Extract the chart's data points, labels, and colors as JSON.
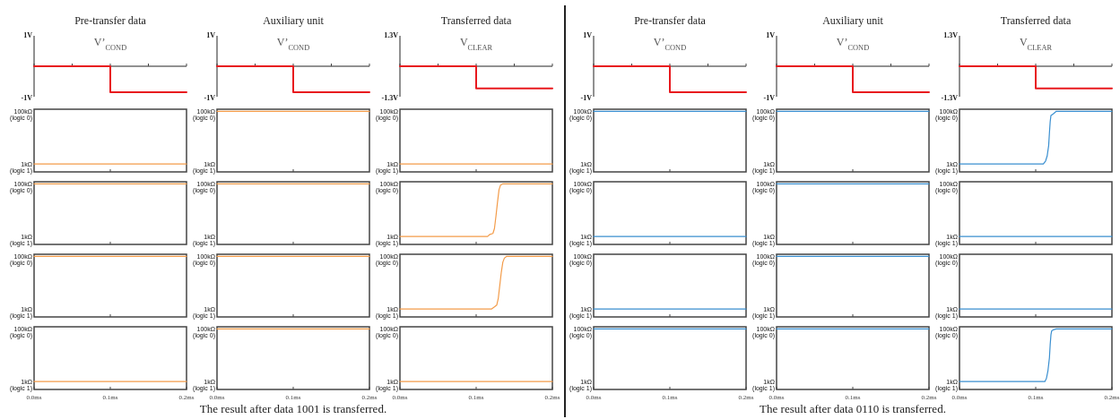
{
  "chart_data": [
    {
      "type": "line",
      "title": "Pre-transfer data",
      "subtitle": "V’$_{COND}$",
      "x": [
        0,
        0.1,
        0.1,
        0.2
      ],
      "series": [
        {
          "color": "#e8191e",
          "values": [
            0,
            0,
            -0.85,
            -0.85
          ]
        }
      ],
      "xlim": [
        0,
        0.2
      ],
      "ylim": [
        -1,
        1
      ],
      "xticks": [
        {
          "value": 0,
          "label": null
        },
        {
          "value": 0.05,
          "label": null
        },
        {
          "value": 0.1,
          "label": null
        },
        {
          "value": 0.15,
          "label": null
        },
        {
          "value": 0.2,
          "label": null
        }
      ],
      "yticks": [
        {
          "value": 1,
          "label": "1V"
        },
        {
          "value": -1,
          "label": "-1V"
        }
      ],
      "tick_labels": "y"
    },
    {
      "type": "line",
      "title": "Auxiliary unit",
      "subtitle": "V’$_{COND}$",
      "x": [
        0,
        0.1,
        0.1,
        0.2
      ],
      "series": [
        {
          "color": "#e8191e",
          "values": [
            0,
            0,
            -0.85,
            -0.85
          ]
        }
      ],
      "xlim": [
        0,
        0.2
      ],
      "ylim": [
        -1,
        1
      ],
      "xticks": [
        {
          "value": 0,
          "label": null
        },
        {
          "value": 0.05,
          "label": null
        },
        {
          "value": 0.1,
          "label": null
        },
        {
          "value": 0.15,
          "label": null
        },
        {
          "value": 0.2,
          "label": null
        }
      ],
      "yticks": [
        {
          "value": 1,
          "label": "1V"
        },
        {
          "value": -1,
          "label": "-1V"
        }
      ],
      "tick_labels": "y"
    },
    {
      "type": "line",
      "title": "Transferred data",
      "subtitle": "V$_{CLEAR}$",
      "x": [
        0,
        0.1,
        0.1,
        0.2
      ],
      "series": [
        {
          "color": "#e8191e",
          "values": [
            0,
            0,
            -0.95,
            -0.95
          ]
        }
      ],
      "xlim": [
        0,
        0.2
      ],
      "ylim": [
        -1.3,
        1.3
      ],
      "xticks": [
        {
          "value": 0,
          "label": null
        },
        {
          "value": 0.05,
          "label": null
        },
        {
          "value": 0.1,
          "label": null
        },
        {
          "value": 0.15,
          "label": null
        },
        {
          "value": 0.2,
          "label": null
        }
      ],
      "yticks": [
        {
          "value": 1.3,
          "label": "1.3V"
        },
        {
          "value": -1.3,
          "label": "-1.3V"
        }
      ],
      "tick_labels": "y"
    },
    {
      "type": "line",
      "x": [
        0,
        0.2
      ],
      "series": [
        {
          "color": "#f39c4a",
          "values": [
            1,
            1
          ]
        }
      ],
      "xlim": [
        0,
        0.2
      ],
      "log": true,
      "ylim": [
        0.5,
        120
      ],
      "xticks": [
        {
          "value": 0.1,
          "label": null
        }
      ],
      "yticks": [
        {
          "value": 100,
          "label": "100kΩ"
        },
        {
          "value": 1,
          "label": "1kΩ"
        }
      ],
      "tick_labels": "y",
      "annotations": [
        "(logic 0)",
        "(logic 1)"
      ]
    },
    {
      "type": "line",
      "x": [
        0,
        0.2
      ],
      "series": [
        {
          "color": "#f39c4a",
          "values": [
            100,
            100
          ]
        }
      ],
      "xlim": [
        0,
        0.2
      ],
      "log": true,
      "ylim": [
        0.5,
        120
      ],
      "xticks": [
        {
          "value": 0.1,
          "label": null
        }
      ],
      "yticks": [
        {
          "value": 100,
          "label": "100kΩ"
        },
        {
          "value": 1,
          "label": "1kΩ"
        }
      ],
      "tick_labels": "y",
      "annotations": [
        "(logic 0)",
        "(logic 1)"
      ]
    },
    {
      "type": "line",
      "x": [
        0,
        0.2
      ],
      "series": [
        {
          "color": "#f39c4a",
          "values": [
            1,
            1
          ]
        }
      ],
      "xlim": [
        0,
        0.2
      ],
      "log": true,
      "ylim": [
        0.5,
        120
      ],
      "xticks": [
        {
          "value": 0.1,
          "label": null
        }
      ],
      "yticks": [
        {
          "value": 100,
          "label": "100kΩ"
        },
        {
          "value": 1,
          "label": "1kΩ"
        }
      ],
      "tick_labels": "y",
      "annotations": [
        "(logic 0)",
        "(logic 1)"
      ]
    },
    {
      "type": "line",
      "x": [
        0,
        0.2
      ],
      "series": [
        {
          "color": "#f39c4a",
          "values": [
            100,
            100
          ]
        }
      ],
      "xlim": [
        0,
        0.2
      ],
      "log": true,
      "ylim": [
        0.5,
        120
      ],
      "xticks": [
        {
          "value": 0.1,
          "label": null
        }
      ],
      "yticks": [
        {
          "value": 100,
          "label": "100kΩ"
        },
        {
          "value": 1,
          "label": "1kΩ"
        }
      ],
      "tick_labels": "y",
      "annotations": [
        "(logic 0)",
        "(logic 1)"
      ]
    },
    {
      "type": "line",
      "x": [
        0,
        0.2
      ],
      "series": [
        {
          "color": "#f39c4a",
          "values": [
            100,
            100
          ]
        }
      ],
      "xlim": [
        0,
        0.2
      ],
      "log": true,
      "ylim": [
        0.5,
        120
      ],
      "xticks": [
        {
          "value": 0.1,
          "label": null
        }
      ],
      "yticks": [
        {
          "value": 100,
          "label": "100kΩ"
        },
        {
          "value": 1,
          "label": "1kΩ"
        }
      ],
      "tick_labels": "y",
      "annotations": [
        "(logic 0)",
        "(logic 1)"
      ]
    },
    {
      "type": "line",
      "x": [
        0,
        0.115,
        0.118,
        0.122,
        0.124,
        0.126,
        0.128,
        0.13,
        0.132,
        0.135,
        0.2
      ],
      "series": [
        {
          "color": "#f39c4a",
          "values": [
            1,
            1,
            1.2,
            1.3,
            2,
            6,
            20,
            60,
            90,
            100,
            100
          ]
        }
      ],
      "xlim": [
        0,
        0.2
      ],
      "log": true,
      "ylim": [
        0.5,
        120
      ],
      "xticks": [
        {
          "value": 0.1,
          "label": null
        }
      ],
      "yticks": [
        {
          "value": 100,
          "label": "100kΩ"
        },
        {
          "value": 1,
          "label": "1kΩ"
        }
      ],
      "tick_labels": "y",
      "annotations": [
        "(logic 0)",
        "(logic 1)"
      ]
    },
    {
      "type": "line",
      "x": [
        0,
        0.2
      ],
      "series": [
        {
          "color": "#f39c4a",
          "values": [
            100,
            100
          ]
        }
      ],
      "xlim": [
        0,
        0.2
      ],
      "log": true,
      "ylim": [
        0.5,
        120
      ],
      "xticks": [
        {
          "value": 0.1,
          "label": null
        }
      ],
      "yticks": [
        {
          "value": 100,
          "label": "100kΩ"
        },
        {
          "value": 1,
          "label": "1kΩ"
        }
      ],
      "tick_labels": "y",
      "annotations": [
        "(logic 0)",
        "(logic 1)"
      ]
    },
    {
      "type": "line",
      "x": [
        0,
        0.2
      ],
      "series": [
        {
          "color": "#f39c4a",
          "values": [
            100,
            100
          ]
        }
      ],
      "xlim": [
        0,
        0.2
      ],
      "log": true,
      "ylim": [
        0.5,
        120
      ],
      "xticks": [
        {
          "value": 0.1,
          "label": null
        }
      ],
      "yticks": [
        {
          "value": 100,
          "label": "100kΩ"
        },
        {
          "value": 1,
          "label": "1kΩ"
        }
      ],
      "tick_labels": "y",
      "annotations": [
        "(logic 0)",
        "(logic 1)"
      ]
    },
    {
      "type": "line",
      "x": [
        0,
        0.12,
        0.124,
        0.127,
        0.129,
        0.131,
        0.133,
        0.135,
        0.137,
        0.14,
        0.2
      ],
      "series": [
        {
          "color": "#f39c4a",
          "values": [
            1,
            1,
            1.2,
            1.4,
            2.5,
            8,
            25,
            60,
            85,
            100,
            100
          ]
        }
      ],
      "xlim": [
        0,
        0.2
      ],
      "log": true,
      "ylim": [
        0.5,
        120
      ],
      "xticks": [
        {
          "value": 0.1,
          "label": null
        }
      ],
      "yticks": [
        {
          "value": 100,
          "label": "100kΩ"
        },
        {
          "value": 1,
          "label": "1kΩ"
        }
      ],
      "tick_labels": "y",
      "annotations": [
        "(logic 0)",
        "(logic 1)"
      ]
    },
    {
      "type": "line",
      "x": [
        0,
        0.2
      ],
      "series": [
        {
          "color": "#f39c4a",
          "values": [
            1,
            1
          ]
        }
      ],
      "xlim": [
        0,
        0.2
      ],
      "log": true,
      "ylim": [
        0.5,
        120
      ],
      "xticks": [
        {
          "value": 0,
          "label": "0.0ms"
        },
        {
          "value": 0.1,
          "label": "0.1ms"
        },
        {
          "value": 0.2,
          "label": "0.2ms"
        }
      ],
      "yticks": [
        {
          "value": 100,
          "label": "100kΩ"
        },
        {
          "value": 1,
          "label": "1kΩ"
        }
      ],
      "annotations": [
        "(logic 0)",
        "(logic 1)"
      ]
    },
    {
      "type": "line",
      "x": [
        0,
        0.2
      ],
      "series": [
        {
          "color": "#f39c4a",
          "values": [
            100,
            100
          ]
        }
      ],
      "xlim": [
        0,
        0.2
      ],
      "log": true,
      "ylim": [
        0.5,
        120
      ],
      "xticks": [
        {
          "value": 0,
          "label": "0.0ms"
        },
        {
          "value": 0.1,
          "label": "0.1ms"
        },
        {
          "value": 0.2,
          "label": "0.2ms"
        }
      ],
      "yticks": [
        {
          "value": 100,
          "label": "100kΩ"
        },
        {
          "value": 1,
          "label": "1kΩ"
        }
      ],
      "annotations": [
        "(logic 0)",
        "(logic 1)",
        "The result after data 1001 is transferred."
      ]
    },
    {
      "type": "line",
      "x": [
        0,
        0.2
      ],
      "series": [
        {
          "color": "#f39c4a",
          "values": [
            1,
            1
          ]
        }
      ],
      "xlim": [
        0,
        0.2
      ],
      "log": true,
      "ylim": [
        0.5,
        120
      ],
      "xticks": [
        {
          "value": 0,
          "label": "0.0ms"
        },
        {
          "value": 0.1,
          "label": "0.1ms"
        },
        {
          "value": 0.2,
          "label": "0.2ms"
        }
      ],
      "yticks": [
        {
          "value": 100,
          "label": "100kΩ"
        },
        {
          "value": 1,
          "label": "1kΩ"
        }
      ],
      "annotations": [
        "(logic 0)",
        "(logic 1)"
      ]
    },
    {
      "type": "line",
      "title": "Pre-transfer data",
      "subtitle": "V’$_{COND}$",
      "x": [
        0,
        0.1,
        0.1,
        0.2
      ],
      "series": [
        {
          "color": "#e8191e",
          "values": [
            0,
            0,
            -0.85,
            -0.85
          ]
        }
      ],
      "xlim": [
        0,
        0.2
      ],
      "ylim": [
        -1,
        1
      ],
      "xticks": [
        {
          "value": 0,
          "label": null
        },
        {
          "value": 0.05,
          "label": null
        },
        {
          "value": 0.1,
          "label": null
        },
        {
          "value": 0.15,
          "label": null
        },
        {
          "value": 0.2,
          "label": null
        }
      ],
      "yticks": [
        {
          "value": 1,
          "label": "1V"
        },
        {
          "value": -1,
          "label": "-1V"
        }
      ],
      "tick_labels": "y"
    },
    {
      "type": "line",
      "title": "Auxiliary unit",
      "subtitle": "V’$_{COND}$",
      "x": [
        0,
        0.1,
        0.1,
        0.2
      ],
      "series": [
        {
          "color": "#e8191e",
          "values": [
            0,
            0,
            -0.85,
            -0.85
          ]
        }
      ],
      "xlim": [
        0,
        0.2
      ],
      "ylim": [
        -1,
        1
      ],
      "xticks": [
        {
          "value": 0,
          "label": null
        },
        {
          "value": 0.05,
          "label": null
        },
        {
          "value": 0.1,
          "label": null
        },
        {
          "value": 0.15,
          "label": null
        },
        {
          "value": 0.2,
          "label": null
        }
      ],
      "yticks": [
        {
          "value": 1,
          "label": "1V"
        },
        {
          "value": -1,
          "label": "-1V"
        }
      ],
      "tick_labels": "y"
    },
    {
      "type": "line",
      "title": "Transferred data",
      "subtitle": "V$_{CLEAR}$",
      "x": [
        0,
        0.1,
        0.1,
        0.2
      ],
      "series": [
        {
          "color": "#e8191e",
          "values": [
            0,
            0,
            -0.95,
            -0.95
          ]
        }
      ],
      "xlim": [
        0,
        0.2
      ],
      "ylim": [
        -1.3,
        1.3
      ],
      "xticks": [
        {
          "value": 0,
          "label": null
        },
        {
          "value": 0.05,
          "label": null
        },
        {
          "value": 0.1,
          "label": null
        },
        {
          "value": 0.15,
          "label": null
        },
        {
          "value": 0.2,
          "label": null
        }
      ],
      "yticks": [
        {
          "value": 1.3,
          "label": "1.3V"
        },
        {
          "value": -1.3,
          "label": "-1.3V"
        }
      ],
      "tick_labels": "y"
    },
    {
      "type": "line",
      "x": [
        0,
        0.2
      ],
      "series": [
        {
          "color": "#3a8fd0",
          "values": [
            100,
            100
          ]
        }
      ],
      "xlim": [
        0,
        0.2
      ],
      "log": true,
      "ylim": [
        0.5,
        120
      ],
      "xticks": [
        {
          "value": 0.1,
          "label": null
        }
      ],
      "yticks": [
        {
          "value": 100,
          "label": "100kΩ"
        },
        {
          "value": 1,
          "label": "1kΩ"
        }
      ],
      "tick_labels": "y",
      "annotations": [
        "(logic 0)",
        "(logic 1)"
      ]
    },
    {
      "type": "line",
      "x": [
        0,
        0.2
      ],
      "series": [
        {
          "color": "#3a8fd0",
          "values": [
            100,
            100
          ]
        }
      ],
      "xlim": [
        0,
        0.2
      ],
      "log": true,
      "ylim": [
        0.5,
        120
      ],
      "xticks": [
        {
          "value": 0.1,
          "label": null
        }
      ],
      "yticks": [
        {
          "value": 100,
          "label": "100kΩ"
        },
        {
          "value": 1,
          "label": "1kΩ"
        }
      ],
      "tick_labels": "y",
      "annotations": [
        "(logic 0)",
        "(logic 1)"
      ]
    },
    {
      "type": "line",
      "x": [
        0,
        0.11,
        0.113,
        0.115,
        0.117,
        0.118,
        0.119,
        0.12,
        0.123,
        0.127,
        0.2
      ],
      "series": [
        {
          "color": "#3a8fd0",
          "values": [
            1,
            1,
            1.3,
            2,
            5,
            15,
            40,
            70,
            80,
            100,
            100
          ]
        }
      ],
      "xlim": [
        0,
        0.2
      ],
      "log": true,
      "ylim": [
        0.5,
        120
      ],
      "xticks": [
        {
          "value": 0.1,
          "label": null
        }
      ],
      "yticks": [
        {
          "value": 100,
          "label": "100kΩ"
        },
        {
          "value": 1,
          "label": "1kΩ"
        }
      ],
      "tick_labels": "y",
      "annotations": [
        "(logic 0)",
        "(logic 1)"
      ]
    },
    {
      "type": "line",
      "x": [
        0,
        0.2
      ],
      "series": [
        {
          "color": "#3a8fd0",
          "values": [
            1,
            1
          ]
        }
      ],
      "xlim": [
        0,
        0.2
      ],
      "log": true,
      "ylim": [
        0.5,
        120
      ],
      "xticks": [
        {
          "value": 0.1,
          "label": null
        }
      ],
      "yticks": [
        {
          "value": 100,
          "label": "100kΩ"
        },
        {
          "value": 1,
          "label": "1kΩ"
        }
      ],
      "tick_labels": "y",
      "annotations": [
        "(logic 0)",
        "(logic 1)"
      ]
    },
    {
      "type": "line",
      "x": [
        0,
        0.2
      ],
      "series": [
        {
          "color": "#3a8fd0",
          "values": [
            100,
            100
          ]
        }
      ],
      "xlim": [
        0,
        0.2
      ],
      "log": true,
      "ylim": [
        0.5,
        120
      ],
      "xticks": [
        {
          "value": 0.1,
          "label": null
        }
      ],
      "yticks": [
        {
          "value": 100,
          "label": "100kΩ"
        },
        {
          "value": 1,
          "label": "1kΩ"
        }
      ],
      "tick_labels": "y",
      "annotations": [
        "(logic 0)",
        "(logic 1)"
      ]
    },
    {
      "type": "line",
      "x": [
        0,
        0.2
      ],
      "series": [
        {
          "color": "#3a8fd0",
          "values": [
            1,
            1
          ]
        }
      ],
      "xlim": [
        0,
        0.2
      ],
      "log": true,
      "ylim": [
        0.5,
        120
      ],
      "xticks": [
        {
          "value": 0.1,
          "label": null
        }
      ],
      "yticks": [
        {
          "value": 100,
          "label": "100kΩ"
        },
        {
          "value": 1,
          "label": "1kΩ"
        }
      ],
      "tick_labels": "y",
      "annotations": [
        "(logic 0)",
        "(logic 1)"
      ]
    },
    {
      "type": "line",
      "x": [
        0,
        0.2
      ],
      "series": [
        {
          "color": "#3a8fd0",
          "values": [
            1,
            1
          ]
        }
      ],
      "xlim": [
        0,
        0.2
      ],
      "log": true,
      "ylim": [
        0.5,
        120
      ],
      "xticks": [
        {
          "value": 0.1,
          "label": null
        }
      ],
      "yticks": [
        {
          "value": 100,
          "label": "100kΩ"
        },
        {
          "value": 1,
          "label": "1kΩ"
        }
      ],
      "tick_labels": "y",
      "annotations": [
        "(logic 0)",
        "(logic 1)"
      ]
    },
    {
      "type": "line",
      "x": [
        0,
        0.2
      ],
      "series": [
        {
          "color": "#3a8fd0",
          "values": [
            100,
            100
          ]
        }
      ],
      "xlim": [
        0,
        0.2
      ],
      "log": true,
      "ylim": [
        0.5,
        120
      ],
      "xticks": [
        {
          "value": 0.1,
          "label": null
        }
      ],
      "yticks": [
        {
          "value": 100,
          "label": "100kΩ"
        },
        {
          "value": 1,
          "label": "1kΩ"
        }
      ],
      "tick_labels": "y",
      "annotations": [
        "(logic 0)",
        "(logic 1)"
      ]
    },
    {
      "type": "line",
      "x": [
        0,
        0.2
      ],
      "series": [
        {
          "color": "#3a8fd0",
          "values": [
            1,
            1
          ]
        }
      ],
      "xlim": [
        0,
        0.2
      ],
      "log": true,
      "ylim": [
        0.5,
        120
      ],
      "xticks": [
        {
          "value": 0.1,
          "label": null
        }
      ],
      "yticks": [
        {
          "value": 100,
          "label": "100kΩ"
        },
        {
          "value": 1,
          "label": "1kΩ"
        }
      ],
      "tick_labels": "y",
      "annotations": [
        "(logic 0)",
        "(logic 1)"
      ]
    },
    {
      "type": "line",
      "x": [
        0,
        0.2
      ],
      "series": [
        {
          "color": "#3a8fd0",
          "values": [
            100,
            100
          ]
        }
      ],
      "xlim": [
        0,
        0.2
      ],
      "log": true,
      "ylim": [
        0.5,
        120
      ],
      "xticks": [
        {
          "value": 0,
          "label": "0.0ms"
        },
        {
          "value": 0.1,
          "label": "0.1ms"
        },
        {
          "value": 0.2,
          "label": "0.2ms"
        }
      ],
      "yticks": [
        {
          "value": 100,
          "label": "100kΩ"
        },
        {
          "value": 1,
          "label": "1kΩ"
        }
      ],
      "annotations": [
        "(logic 0)",
        "(logic 1)"
      ]
    },
    {
      "type": "line",
      "x": [
        0,
        0.2
      ],
      "series": [
        {
          "color": "#3a8fd0",
          "values": [
            100,
            100
          ]
        }
      ],
      "xlim": [
        0,
        0.2
      ],
      "log": true,
      "ylim": [
        0.5,
        120
      ],
      "xticks": [
        {
          "value": 0,
          "label": "0.0ms"
        },
        {
          "value": 0.1,
          "label": "0.1ms"
        },
        {
          "value": 0.2,
          "label": "0.2ms"
        }
      ],
      "yticks": [
        {
          "value": 100,
          "label": "100kΩ"
        },
        {
          "value": 1,
          "label": "1kΩ"
        }
      ],
      "annotations": [
        "(logic 0)",
        "(logic 1)",
        "The result after data 0110 is transferred."
      ]
    },
    {
      "type": "line",
      "x": [
        0,
        0.112,
        0.114,
        0.116,
        0.118,
        0.119,
        0.12,
        0.121,
        0.123,
        0.127,
        0.2
      ],
      "series": [
        {
          "color": "#3a8fd0",
          "values": [
            1,
            1,
            1.3,
            2.5,
            8,
            25,
            60,
            85,
            92,
            100,
            100
          ]
        }
      ],
      "xlim": [
        0,
        0.2
      ],
      "log": true,
      "ylim": [
        0.5,
        120
      ],
      "xticks": [
        {
          "value": 0,
          "label": "0.0ms"
        },
        {
          "value": 0.1,
          "label": "0.1ms"
        },
        {
          "value": 0.2,
          "label": "0.2ms"
        }
      ],
      "yticks": [
        {
          "value": 100,
          "label": "100kΩ"
        },
        {
          "value": 1,
          "label": "1kΩ"
        }
      ],
      "annotations": [
        "(logic 0)",
        "(logic 1)"
      ]
    }
  ]
}
